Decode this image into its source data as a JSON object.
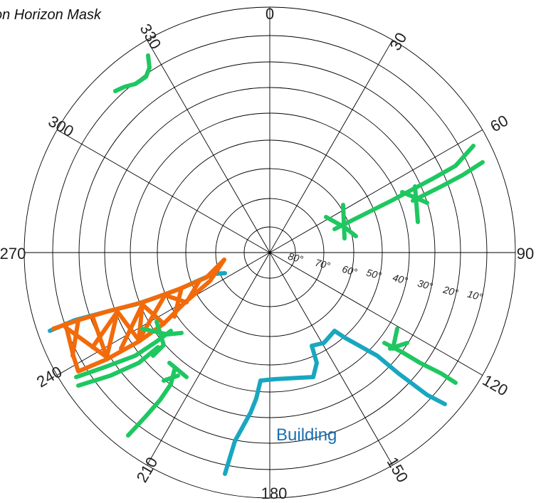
{
  "title": "on Horizon Mask",
  "azimuth_labels": [
    "0",
    "30",
    "60",
    "90",
    "120",
    "150",
    "180",
    "210",
    "240",
    "270",
    "300",
    "330"
  ],
  "elevation_labels": [
    "80°",
    "70°",
    "60°",
    "50°",
    "40°",
    "30°",
    "20°",
    "10°"
  ],
  "annotations": {
    "building": {
      "text": "Building",
      "color": "#1b6fb3"
    }
  },
  "colors": {
    "grid": "#000000",
    "vegetation": "#1ec760",
    "building_outline": "#19a7c0",
    "structure": "#f26a0a"
  }
}
